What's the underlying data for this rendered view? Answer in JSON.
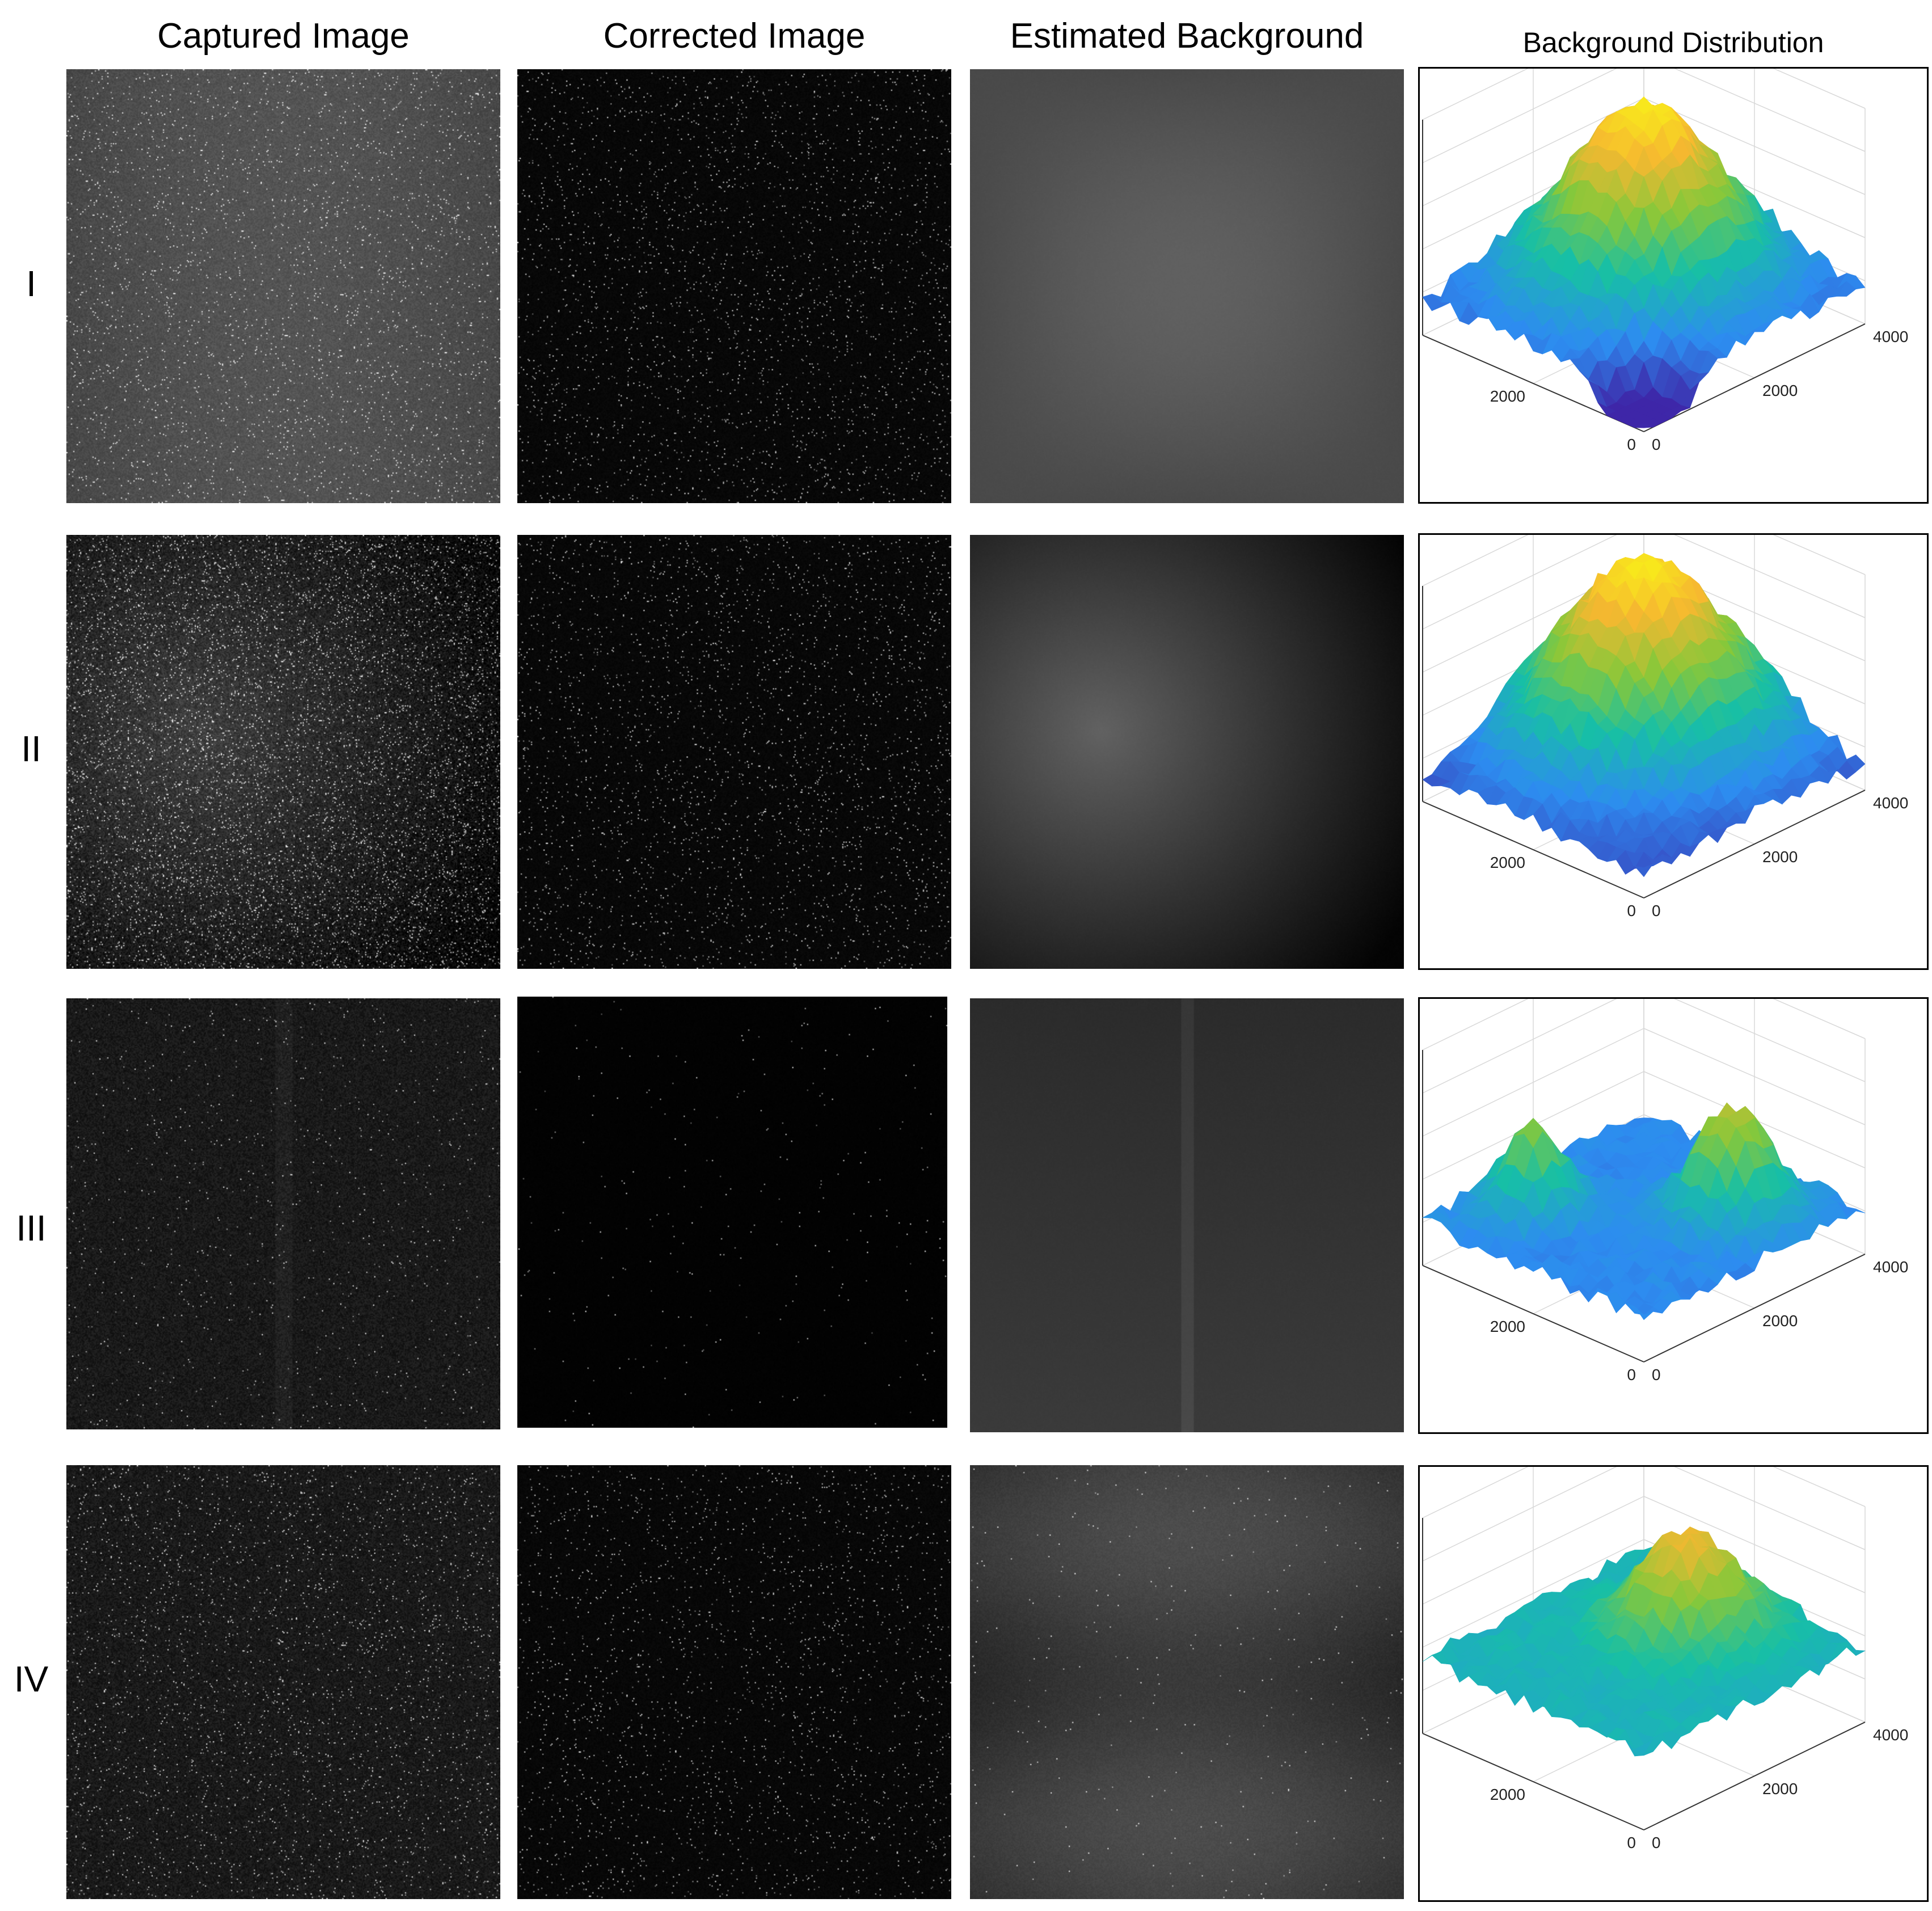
{
  "columns": [
    "Captured Image",
    "Corrected Image",
    "Estimated Background",
    "Background Distribution"
  ],
  "rows": [
    "I",
    "II",
    "III",
    "IV"
  ],
  "image_descriptions_scene": {
    "row_I": {
      "captured_brightness": 0.33,
      "corrected_brightness": 0.03,
      "background_brightness": 0.36
    },
    "row_II": {
      "captured_brightness": 0.18,
      "corrected_brightness": 0.03,
      "background_brightness": 0.32
    },
    "row_III": {
      "captured_brightness": 0.1,
      "corrected_brightness": 0.01,
      "background_brightness": 0.2
    },
    "row_IV": {
      "captured_brightness": 0.1,
      "corrected_brightness": 0.03,
      "background_brightness": 0.24
    }
  },
  "chart_data": [
    {
      "type": "surface",
      "z_ticks": [
        "0",
        "0.2",
        "0.4",
        "0.6",
        "0.8",
        "1"
      ],
      "x_ticks": [
        "0",
        "2000",
        "4000"
      ],
      "y_ticks": [
        "0",
        "2000",
        "4000"
      ],
      "zlim": [
        0,
        1
      ],
      "xlim": [
        0,
        4000
      ],
      "ylim": [
        0,
        4000
      ],
      "colormap": [
        "#3e26a8",
        "#2d8cf0",
        "#17bfa6",
        "#86c83a",
        "#f6b830",
        "#f9fb14"
      ]
    },
    {
      "type": "surface",
      "z_ticks": [
        "0",
        "0.2",
        "0.4",
        "0.6",
        "0.8",
        "1"
      ],
      "x_ticks": [
        "0",
        "2000",
        "4000"
      ],
      "y_ticks": [
        "0",
        "2000",
        "4000"
      ],
      "zlim": [
        0,
        1
      ],
      "xlim": [
        0,
        4000
      ],
      "ylim": [
        0,
        4000
      ],
      "colormap": [
        "#3e26a8",
        "#2d8cf0",
        "#17bfa6",
        "#86c83a",
        "#f6b830",
        "#f9fb14"
      ]
    },
    {
      "type": "surface",
      "z_ticks": [
        "0",
        "0.2",
        "0.4",
        "0.6",
        "0.8",
        "1"
      ],
      "x_ticks": [
        "0",
        "2000",
        "4000"
      ],
      "y_ticks": [
        "0",
        "2000",
        "4000"
      ],
      "zlim": [
        0,
        1
      ],
      "xlim": [
        0,
        4000
      ],
      "ylim": [
        0,
        4000
      ],
      "colormap": [
        "#3e26a8",
        "#2d8cf0",
        "#17bfa6",
        "#86c83a",
        "#f6b830",
        "#f9fb14"
      ]
    },
    {
      "type": "surface",
      "z_ticks": [
        "0",
        "0.2",
        "0.4",
        "0.6",
        "0.8",
        "1"
      ],
      "x_ticks": [
        "0",
        "2000",
        "4000"
      ],
      "y_ticks": [
        "0",
        "2000",
        "4000"
      ],
      "zlim": [
        0,
        1
      ],
      "xlim": [
        0,
        4000
      ],
      "ylim": [
        0,
        4000
      ],
      "colormap": [
        "#3e26a8",
        "#2d8cf0",
        "#17bfa6",
        "#86c83a",
        "#f6b830",
        "#f9fb14"
      ]
    }
  ]
}
